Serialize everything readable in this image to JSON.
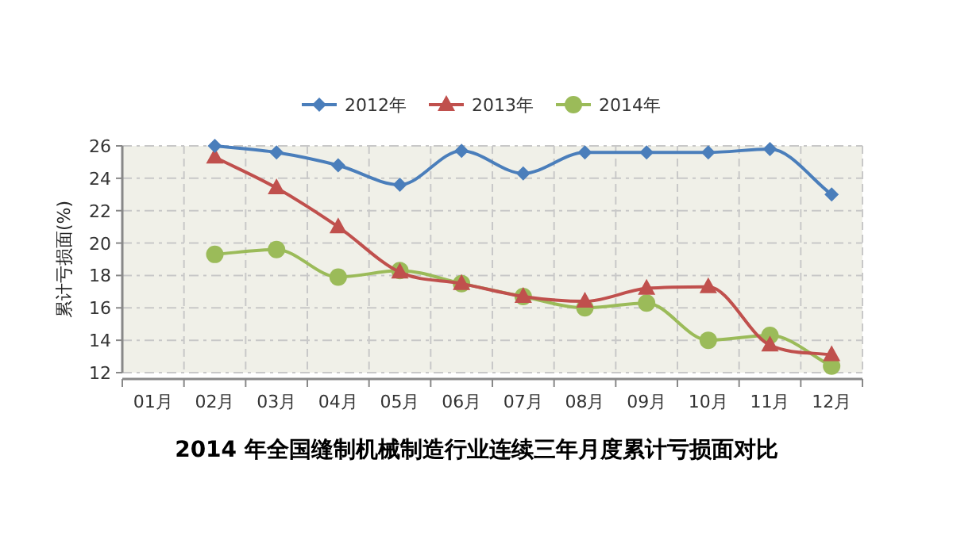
{
  "chart_data": {
    "type": "line",
    "title": "2014 年全国缝制机械制造行业连续三年月度累计亏损面对比",
    "ylabel": "累计亏损面(%)",
    "categories": [
      "01月",
      "02月",
      "03月",
      "04月",
      "05月",
      "06月",
      "07月",
      "08月",
      "09月",
      "10月",
      "11月",
      "12月"
    ],
    "series": [
      {
        "name": "2012年",
        "color": "#4a7ebb",
        "marker": "diamond",
        "values": [
          null,
          26.0,
          25.6,
          24.8,
          23.6,
          25.7,
          24.3,
          25.6,
          25.6,
          25.6,
          25.8,
          23.0
        ]
      },
      {
        "name": "2013年",
        "color": "#c0504d",
        "marker": "triangle",
        "values": [
          null,
          25.3,
          23.4,
          21.0,
          18.2,
          17.5,
          16.7,
          16.4,
          17.2,
          17.3,
          13.7,
          13.1
        ]
      },
      {
        "name": "2014年",
        "color": "#9bbb59",
        "marker": "circle",
        "values": [
          null,
          19.3,
          19.6,
          17.9,
          18.3,
          17.5,
          16.7,
          16.0,
          16.3,
          14.0,
          14.3,
          12.4
        ]
      }
    ],
    "ylim": [
      12,
      26
    ],
    "yticks": [
      12,
      14,
      16,
      18,
      20,
      22,
      24,
      26
    ],
    "grid": true,
    "legend": "top",
    "line_style": "solid"
  }
}
